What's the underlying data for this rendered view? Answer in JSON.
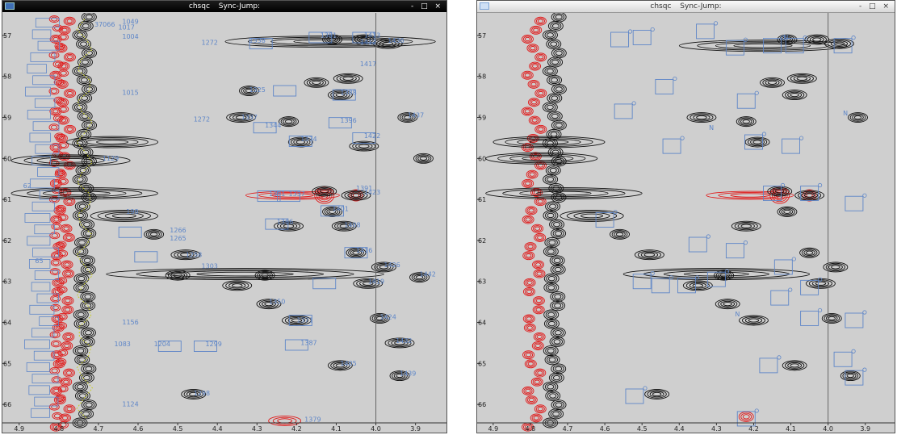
{
  "left_window": {
    "title": "chsqc",
    "sync": "Sync-Jump:",
    "controls": "- □ ×",
    "x_ticks": [
      "4.9",
      "4.8",
      "4.7",
      "4.6",
      "4.5",
      "4.4",
      "4.3",
      "4.2",
      "4.1",
      "4.0",
      "3.9"
    ],
    "y_ticks": [
      "57",
      "58",
      "59",
      "60",
      "61",
      "62",
      "63",
      "64",
      "65",
      "66"
    ],
    "peak_labels": [
      {
        "text": "1049",
        "x": 4.64,
        "y": 56.72
      },
      {
        "text": "37066",
        "x": 4.71,
        "y": 56.78
      },
      {
        "text": "1017",
        "x": 4.65,
        "y": 56.85
      },
      {
        "text": "1004",
        "x": 4.64,
        "y": 57.08
      },
      {
        "text": "1272",
        "x": 4.44,
        "y": 57.23
      },
      {
        "text": "1381",
        "x": 4.14,
        "y": 57.05
      },
      {
        "text": "1413",
        "x": 4.03,
        "y": 57.05
      },
      {
        "text": "1338",
        "x": 4.32,
        "y": 57.18
      },
      {
        "text": "1436",
        "x": 3.97,
        "y": 57.18
      },
      {
        "text": "1412",
        "x": 4.04,
        "y": 57.22
      },
      {
        "text": "1417",
        "x": 4.04,
        "y": 57.75
      },
      {
        "text": "1325",
        "x": 4.32,
        "y": 58.38
      },
      {
        "text": "1388",
        "x": 4.09,
        "y": 58.45
      },
      {
        "text": "1015",
        "x": 4.64,
        "y": 58.45
      },
      {
        "text": "1272",
        "x": 4.46,
        "y": 59.1
      },
      {
        "text": "1337",
        "x": 4.34,
        "y": 59.05
      },
      {
        "text": "1344",
        "x": 4.28,
        "y": 59.25
      },
      {
        "text": "1396",
        "x": 4.09,
        "y": 59.13
      },
      {
        "text": "1437",
        "x": 3.92,
        "y": 59.0
      },
      {
        "text": "1422",
        "x": 4.03,
        "y": 59.5
      },
      {
        "text": "1374",
        "x": 4.19,
        "y": 59.58
      },
      {
        "text": "1129",
        "x": 4.69,
        "y": 60.05
      },
      {
        "text": "1391",
        "x": 4.05,
        "y": 60.78
      },
      {
        "text": "1423",
        "x": 4.03,
        "y": 60.88
      },
      {
        "text": "1351",
        "x": 4.27,
        "y": 60.92
      },
      {
        "text": "1357",
        "x": 4.22,
        "y": 60.92
      },
      {
        "text": "1401",
        "x": 4.11,
        "y": 61.28
      },
      {
        "text": "1408",
        "x": 4.08,
        "y": 61.68
      },
      {
        "text": "1366",
        "x": 4.25,
        "y": 61.6
      },
      {
        "text": "1266",
        "x": 4.52,
        "y": 61.8
      },
      {
        "text": "1265",
        "x": 4.52,
        "y": 62.0
      },
      {
        "text": "1258",
        "x": 4.48,
        "y": 62.4
      },
      {
        "text": "1416",
        "x": 4.05,
        "y": 62.3
      },
      {
        "text": "1303",
        "x": 4.44,
        "y": 62.68
      },
      {
        "text": "1426",
        "x": 3.98,
        "y": 62.65
      },
      {
        "text": "1419",
        "x": 4.02,
        "y": 63.05
      },
      {
        "text": "1442",
        "x": 3.89,
        "y": 62.88
      },
      {
        "text": "1350",
        "x": 4.27,
        "y": 63.55
      },
      {
        "text": "1371",
        "x": 4.2,
        "y": 64.0
      },
      {
        "text": "1424",
        "x": 3.99,
        "y": 63.92
      },
      {
        "text": "1156",
        "x": 4.64,
        "y": 64.05
      },
      {
        "text": "1432",
        "x": 3.95,
        "y": 64.5
      },
      {
        "text": "1387",
        "x": 4.19,
        "y": 64.55
      },
      {
        "text": "1083",
        "x": 4.66,
        "y": 64.58
      },
      {
        "text": "1204",
        "x": 4.56,
        "y": 64.58
      },
      {
        "text": "1299",
        "x": 4.43,
        "y": 64.58
      },
      {
        "text": "1405",
        "x": 4.09,
        "y": 65.05
      },
      {
        "text": "1439",
        "x": 3.94,
        "y": 65.3
      },
      {
        "text": "1298",
        "x": 4.46,
        "y": 65.78
      },
      {
        "text": "1124",
        "x": 4.64,
        "y": 66.05
      },
      {
        "text": "1379",
        "x": 4.18,
        "y": 66.42
      },
      {
        "text": "62",
        "x": 4.89,
        "y": 60.72
      },
      {
        "text": "65",
        "x": 4.86,
        "y": 62.55
      },
      {
        "text": "198",
        "x": 4.63,
        "y": 61.35
      }
    ]
  },
  "right_window": {
    "title": "chsqc",
    "sync": "Sync-Jump:",
    "controls": "- □ ×",
    "x_ticks": [
      "4.9",
      "4.8",
      "4.7",
      "4.6",
      "4.5",
      "4.4",
      "4.3",
      "4.2",
      "4.1",
      "4.0",
      "3.9"
    ],
    "y_ticks": [
      "57",
      "58",
      "59",
      "60",
      "61",
      "62",
      "63",
      "64",
      "65",
      "66"
    ],
    "peak_labels": [
      {
        "text": "N",
        "x": 4.12,
        "y": 57.1
      },
      {
        "text": "N",
        "x": 4.32,
        "y": 59.3
      },
      {
        "text": "N",
        "x": 3.96,
        "y": 58.95
      },
      {
        "text": "N",
        "x": 4.25,
        "y": 63.85
      }
    ]
  },
  "colors": {
    "positive": "#101010",
    "negative": "#e01818",
    "box": "#5e86c8",
    "label": "#5e86c8",
    "bg": "#cfcfcf",
    "trace": "#c8cc28"
  }
}
